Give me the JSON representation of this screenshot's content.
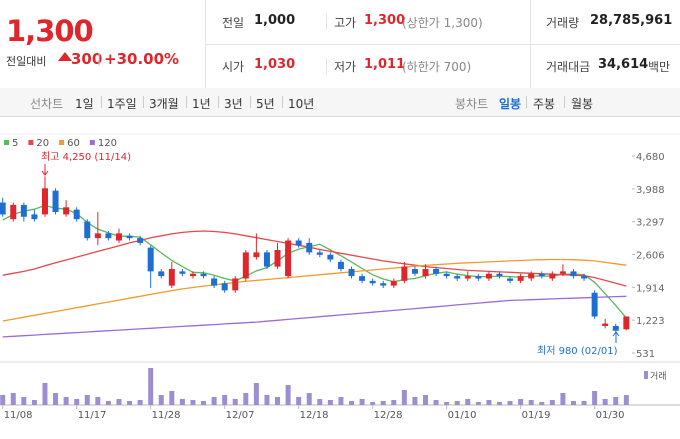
{
  "header": {
    "price": "1,300",
    "change_label": "전일대비",
    "change": "300",
    "change_rate": "+30.00%"
  },
  "summary": [
    [
      {
        "label": "전일",
        "value": "1,000"
      },
      {
        "label": "고가",
        "value": "1,300",
        "note": "(상한가 1,300)"
      },
      {
        "label": "거래량",
        "value": "28,785,961"
      }
    ],
    [
      {
        "label": "시가",
        "value": "1,030"
      },
      {
        "label": "저가",
        "value": "1,011",
        "note": "(하한가 700)"
      },
      {
        "label": "거래대금",
        "value": "34,614",
        "unit": "백만"
      }
    ]
  ],
  "tabs": {
    "line_chart": "선차트",
    "line_periods": [
      "1일",
      "1주일",
      "3개월",
      "1년",
      "3년",
      "5년",
      "10년"
    ],
    "candle_chart": "봉차트",
    "candle_periods": [
      "일봉",
      "주봉",
      "월봉"
    ]
  },
  "chart_data": {
    "type": "candlestick",
    "categories": [
      "11/08",
      null,
      null,
      null,
      null,
      null,
      null,
      "11/17",
      null,
      null,
      null,
      null,
      null,
      null,
      "11/28",
      null,
      null,
      null,
      null,
      null,
      null,
      "12/07",
      null,
      null,
      null,
      null,
      null,
      null,
      "12/18",
      null,
      null,
      null,
      null,
      null,
      null,
      "12/28",
      null,
      null,
      null,
      null,
      null,
      null,
      "01/10",
      null,
      null,
      null,
      null,
      null,
      null,
      "01/19",
      null,
      null,
      null,
      null,
      null,
      null,
      "01/30",
      null,
      null,
      null
    ],
    "open": [
      3700,
      3350,
      3650,
      3450,
      3450,
      3950,
      3450,
      3550,
      3300,
      2950,
      3050,
      2900,
      3000,
      2950,
      2750,
      2250,
      1950,
      2250,
      2150,
      2200,
      2100,
      2000,
      1850,
      2100,
      2550,
      2650,
      2350,
      2150,
      2900,
      2850,
      2650,
      2600,
      2450,
      2300,
      2150,
      2050,
      2000,
      1950,
      2050,
      2300,
      2150,
      2300,
      2200,
      2150,
      2100,
      2150,
      2100,
      2200,
      2100,
      2050,
      2100,
      2200,
      2100,
      2200,
      2250,
      2150,
      1800,
      1100,
      1100,
      1030
    ],
    "high": [
      3800,
      3700,
      3700,
      3550,
      4250,
      4000,
      3750,
      3600,
      3350,
      3500,
      3100,
      3150,
      3050,
      3000,
      2800,
      2300,
      2450,
      2300,
      2250,
      2250,
      2150,
      2050,
      2150,
      2700,
      3050,
      2700,
      2850,
      2950,
      2950,
      2950,
      2700,
      2650,
      2500,
      2350,
      2200,
      2100,
      2050,
      2100,
      2450,
      2350,
      2400,
      2350,
      2250,
      2200,
      2250,
      2200,
      2250,
      2250,
      2150,
      2200,
      2250,
      2250,
      2250,
      2400,
      2300,
      2200,
      1850,
      1250,
      1150,
      1300
    ],
    "low": [
      3400,
      3300,
      3300,
      3300,
      3400,
      3450,
      3400,
      3300,
      2900,
      2800,
      2900,
      2850,
      2900,
      2800,
      1900,
      2100,
      1900,
      2150,
      2100,
      2100,
      1900,
      1800,
      1800,
      2050,
      2500,
      2300,
      2300,
      2100,
      2750,
      2600,
      2550,
      2450,
      2250,
      2100,
      2000,
      1950,
      1900,
      1900,
      2000,
      2150,
      2100,
      2150,
      2100,
      2050,
      2050,
      2050,
      2050,
      2100,
      2000,
      2000,
      2050,
      2100,
      2050,
      2150,
      2100,
      2050,
      1250,
      1050,
      980,
      1011
    ],
    "close": [
      3450,
      3650,
      3400,
      3350,
      4000,
      3500,
      3600,
      3350,
      2950,
      3050,
      2950,
      3050,
      2950,
      2850,
      2250,
      2150,
      2300,
      2200,
      2200,
      2150,
      1950,
      1850,
      2100,
      2650,
      2650,
      2350,
      2700,
      2900,
      2800,
      2650,
      2600,
      2500,
      2300,
      2150,
      2050,
      2000,
      1950,
      2050,
      2350,
      2200,
      2300,
      2200,
      2150,
      2100,
      2150,
      2100,
      2200,
      2150,
      2050,
      2150,
      2200,
      2150,
      2200,
      2250,
      2150,
      2100,
      1300,
      1150,
      1000,
      1300
    ],
    "up_color": "#e0262d",
    "down_color": "#1e6fd1",
    "moving_averages": [
      {
        "name": "5",
        "color": "#5cb85c",
        "values": [
          3330,
          3450,
          3520,
          3560,
          3640,
          3580,
          3560,
          3470,
          3280,
          3140,
          3060,
          2990,
          2990,
          2970,
          2810,
          2640,
          2480,
          2350,
          2230,
          2220,
          2170,
          2100,
          2050,
          2150,
          2260,
          2330,
          2470,
          2630,
          2720,
          2770,
          2820,
          2700,
          2580,
          2450,
          2310,
          2180,
          2090,
          2030,
          2080,
          2100,
          2160,
          2210,
          2240,
          2190,
          2160,
          2140,
          2140,
          2150,
          2140,
          2130,
          2150,
          2150,
          2150,
          2190,
          2190,
          2180,
          2020,
          1780,
          1530,
          1270
        ]
      },
      {
        "name": "20",
        "color": "#e5484d",
        "values": [
          2170,
          2210,
          2250,
          2300,
          2370,
          2430,
          2490,
          2550,
          2610,
          2670,
          2730,
          2790,
          2850,
          2900,
          2960,
          3000,
          3040,
          3070,
          3090,
          3100,
          3090,
          3070,
          3040,
          3000,
          2960,
          2920,
          2880,
          2840,
          2800,
          2760,
          2710,
          2670,
          2630,
          2590,
          2550,
          2510,
          2470,
          2440,
          2410,
          2380,
          2350,
          2330,
          2310,
          2290,
          2270,
          2260,
          2250,
          2240,
          2230,
          2220,
          2210,
          2200,
          2190,
          2180,
          2170,
          2160,
          2120,
          2060,
          2000,
          1940
        ]
      },
      {
        "name": "60",
        "color": "#f39a2e",
        "values": [
          1205,
          1245,
          1285,
          1325,
          1365,
          1405,
          1445,
          1485,
          1525,
          1565,
          1605,
          1645,
          1685,
          1725,
          1765,
          1805,
          1845,
          1880,
          1910,
          1940,
          1965,
          1990,
          2015,
          2040,
          2060,
          2080,
          2100,
          2120,
          2140,
          2160,
          2180,
          2200,
          2220,
          2240,
          2260,
          2280,
          2300,
          2320,
          2340,
          2360,
          2375,
          2390,
          2405,
          2420,
          2430,
          2440,
          2450,
          2460,
          2470,
          2480,
          2490,
          2495,
          2500,
          2500,
          2495,
          2485,
          2470,
          2440,
          2410,
          2380
        ]
      },
      {
        "name": "120",
        "color": "#9b6bd8",
        "values": [
          870,
          883,
          896,
          909,
          922,
          935,
          948,
          961,
          974,
          987,
          1000,
          1013,
          1026,
          1039,
          1052,
          1065,
          1078,
          1091,
          1104,
          1117,
          1130,
          1143,
          1156,
          1169,
          1182,
          1201,
          1220,
          1239,
          1258,
          1277,
          1296,
          1315,
          1334,
          1353,
          1372,
          1391,
          1410,
          1429,
          1448,
          1467,
          1486,
          1505,
          1524,
          1543,
          1562,
          1581,
          1600,
          1619,
          1638,
          1646,
          1654,
          1662,
          1670,
          1678,
          1686,
          1694,
          1702,
          1710,
          1718,
          1726
        ]
      }
    ],
    "volume": {
      "name": "거래",
      "color": "#9c8ed1",
      "values": [
        29000000,
        34800000,
        23200000,
        14500000,
        63800000,
        34800000,
        23200000,
        17400000,
        29000000,
        23200000,
        11600000,
        17400000,
        11600000,
        14500000,
        107300000,
        29000000,
        40600000,
        17400000,
        14500000,
        11600000,
        23200000,
        29000000,
        17400000,
        34800000,
        63800000,
        29000000,
        23200000,
        58000000,
        23200000,
        34800000,
        17400000,
        14500000,
        23200000,
        11600000,
        17400000,
        8700000,
        11600000,
        14500000,
        43500000,
        23200000,
        29000000,
        14500000,
        8700000,
        11600000,
        17400000,
        8700000,
        14500000,
        8700000,
        11600000,
        17400000,
        14500000,
        8700000,
        14500000,
        34800000,
        11600000,
        11600000,
        40600000,
        17400000,
        23200000,
        28785961
      ]
    },
    "ylim": [
      531,
      4680
    ],
    "yticks": [
      {
        "value": 4680,
        "label": "4,680"
      },
      {
        "value": 3988,
        "label": "3,988"
      },
      {
        "value": 3297,
        "label": "3,297"
      },
      {
        "value": 2606,
        "label": "2,606"
      },
      {
        "value": 1914,
        "label": "1,914"
      },
      {
        "value": 1223,
        "label": "1,223"
      },
      531
    ],
    "annotations": [
      {
        "text": "최고 4,250 (11/14)"
      },
      {
        "text": "최저 980 (02/01)"
      }
    ]
  }
}
